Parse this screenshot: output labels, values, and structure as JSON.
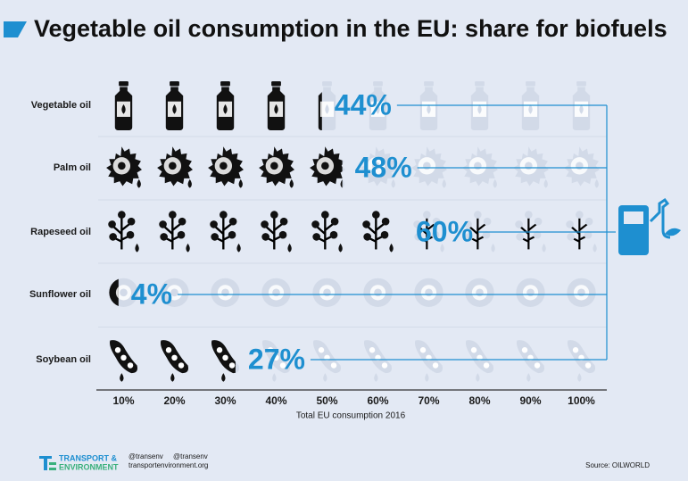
{
  "chart_data": {
    "type": "pictogram",
    "title": "Vegetable oil consumption in the EU: share for biofuels",
    "categories": [
      "Vegetable oil",
      "Palm oil",
      "Rapeseed oil",
      "Sunflower oil",
      "Soybean oil"
    ],
    "values": [
      44,
      48,
      60,
      4,
      27
    ],
    "value_labels": [
      "44%",
      "48%",
      "60%",
      "4%",
      "27%"
    ],
    "color": "#1e8fd0",
    "xlim": [
      0,
      100
    ],
    "xticks": [
      {
        "value": 10,
        "label": "10%"
      },
      {
        "value": 20,
        "label": "20%"
      },
      {
        "value": 30,
        "label": "30%"
      },
      {
        "value": 40,
        "label": "40%"
      },
      {
        "value": 50,
        "label": "50%"
      },
      {
        "value": 60,
        "label": "60%"
      },
      {
        "value": 70,
        "label": "70%"
      },
      {
        "value": 80,
        "label": "80%"
      },
      {
        "value": 90,
        "label": "90%"
      },
      {
        "value": 100,
        "label": "100%"
      }
    ],
    "x_label": "Total EU consumption 2016"
  },
  "footer": {
    "brand_line1": "TRANSPORT &",
    "brand_line2": "ENVIRONMENT",
    "twitter": "@transenv",
    "facebook": "@transenv",
    "website": "transportenvironment.org",
    "source": "Source: OILWORLD"
  }
}
